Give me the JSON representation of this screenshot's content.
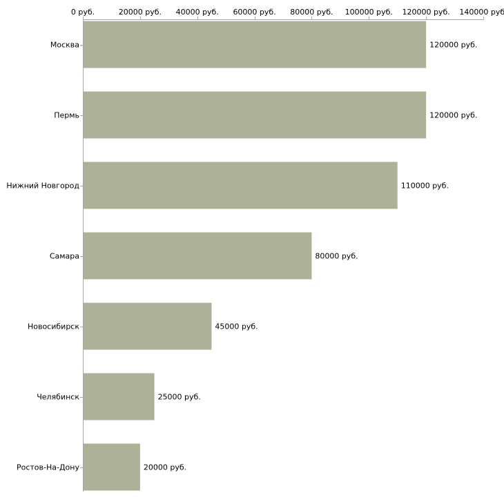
{
  "chart_data": {
    "type": "bar",
    "orientation": "horizontal",
    "title": "",
    "xlabel": "",
    "ylabel": "",
    "xlim": [
      0,
      140000
    ],
    "grid": false,
    "legend": "none",
    "colors": {
      "bar": "#acb197",
      "axis": "#a6a6a6",
      "text": "#000000"
    },
    "x_ticks": [
      0,
      20000,
      40000,
      60000,
      80000,
      100000,
      120000,
      140000
    ],
    "x_tick_labels": [
      "0 руб.",
      "20000 руб.",
      "40000 руб.",
      "60000 руб.",
      "80000 руб.",
      "100000 руб.",
      "120000 руб.",
      "140000 руб."
    ],
    "categories": [
      "Москва",
      "Пермь",
      "Нижний Новгород",
      "Самара",
      "Новосибирск",
      "Челябинск",
      "Ростов-На-Дону"
    ],
    "values": [
      120000,
      120000,
      110000,
      80000,
      45000,
      25000,
      20000
    ],
    "value_labels": [
      "120000 руб.",
      "120000 руб.",
      "110000 руб.",
      "80000 руб.",
      "45000 руб.",
      "25000 руб.",
      "20000 руб."
    ]
  }
}
